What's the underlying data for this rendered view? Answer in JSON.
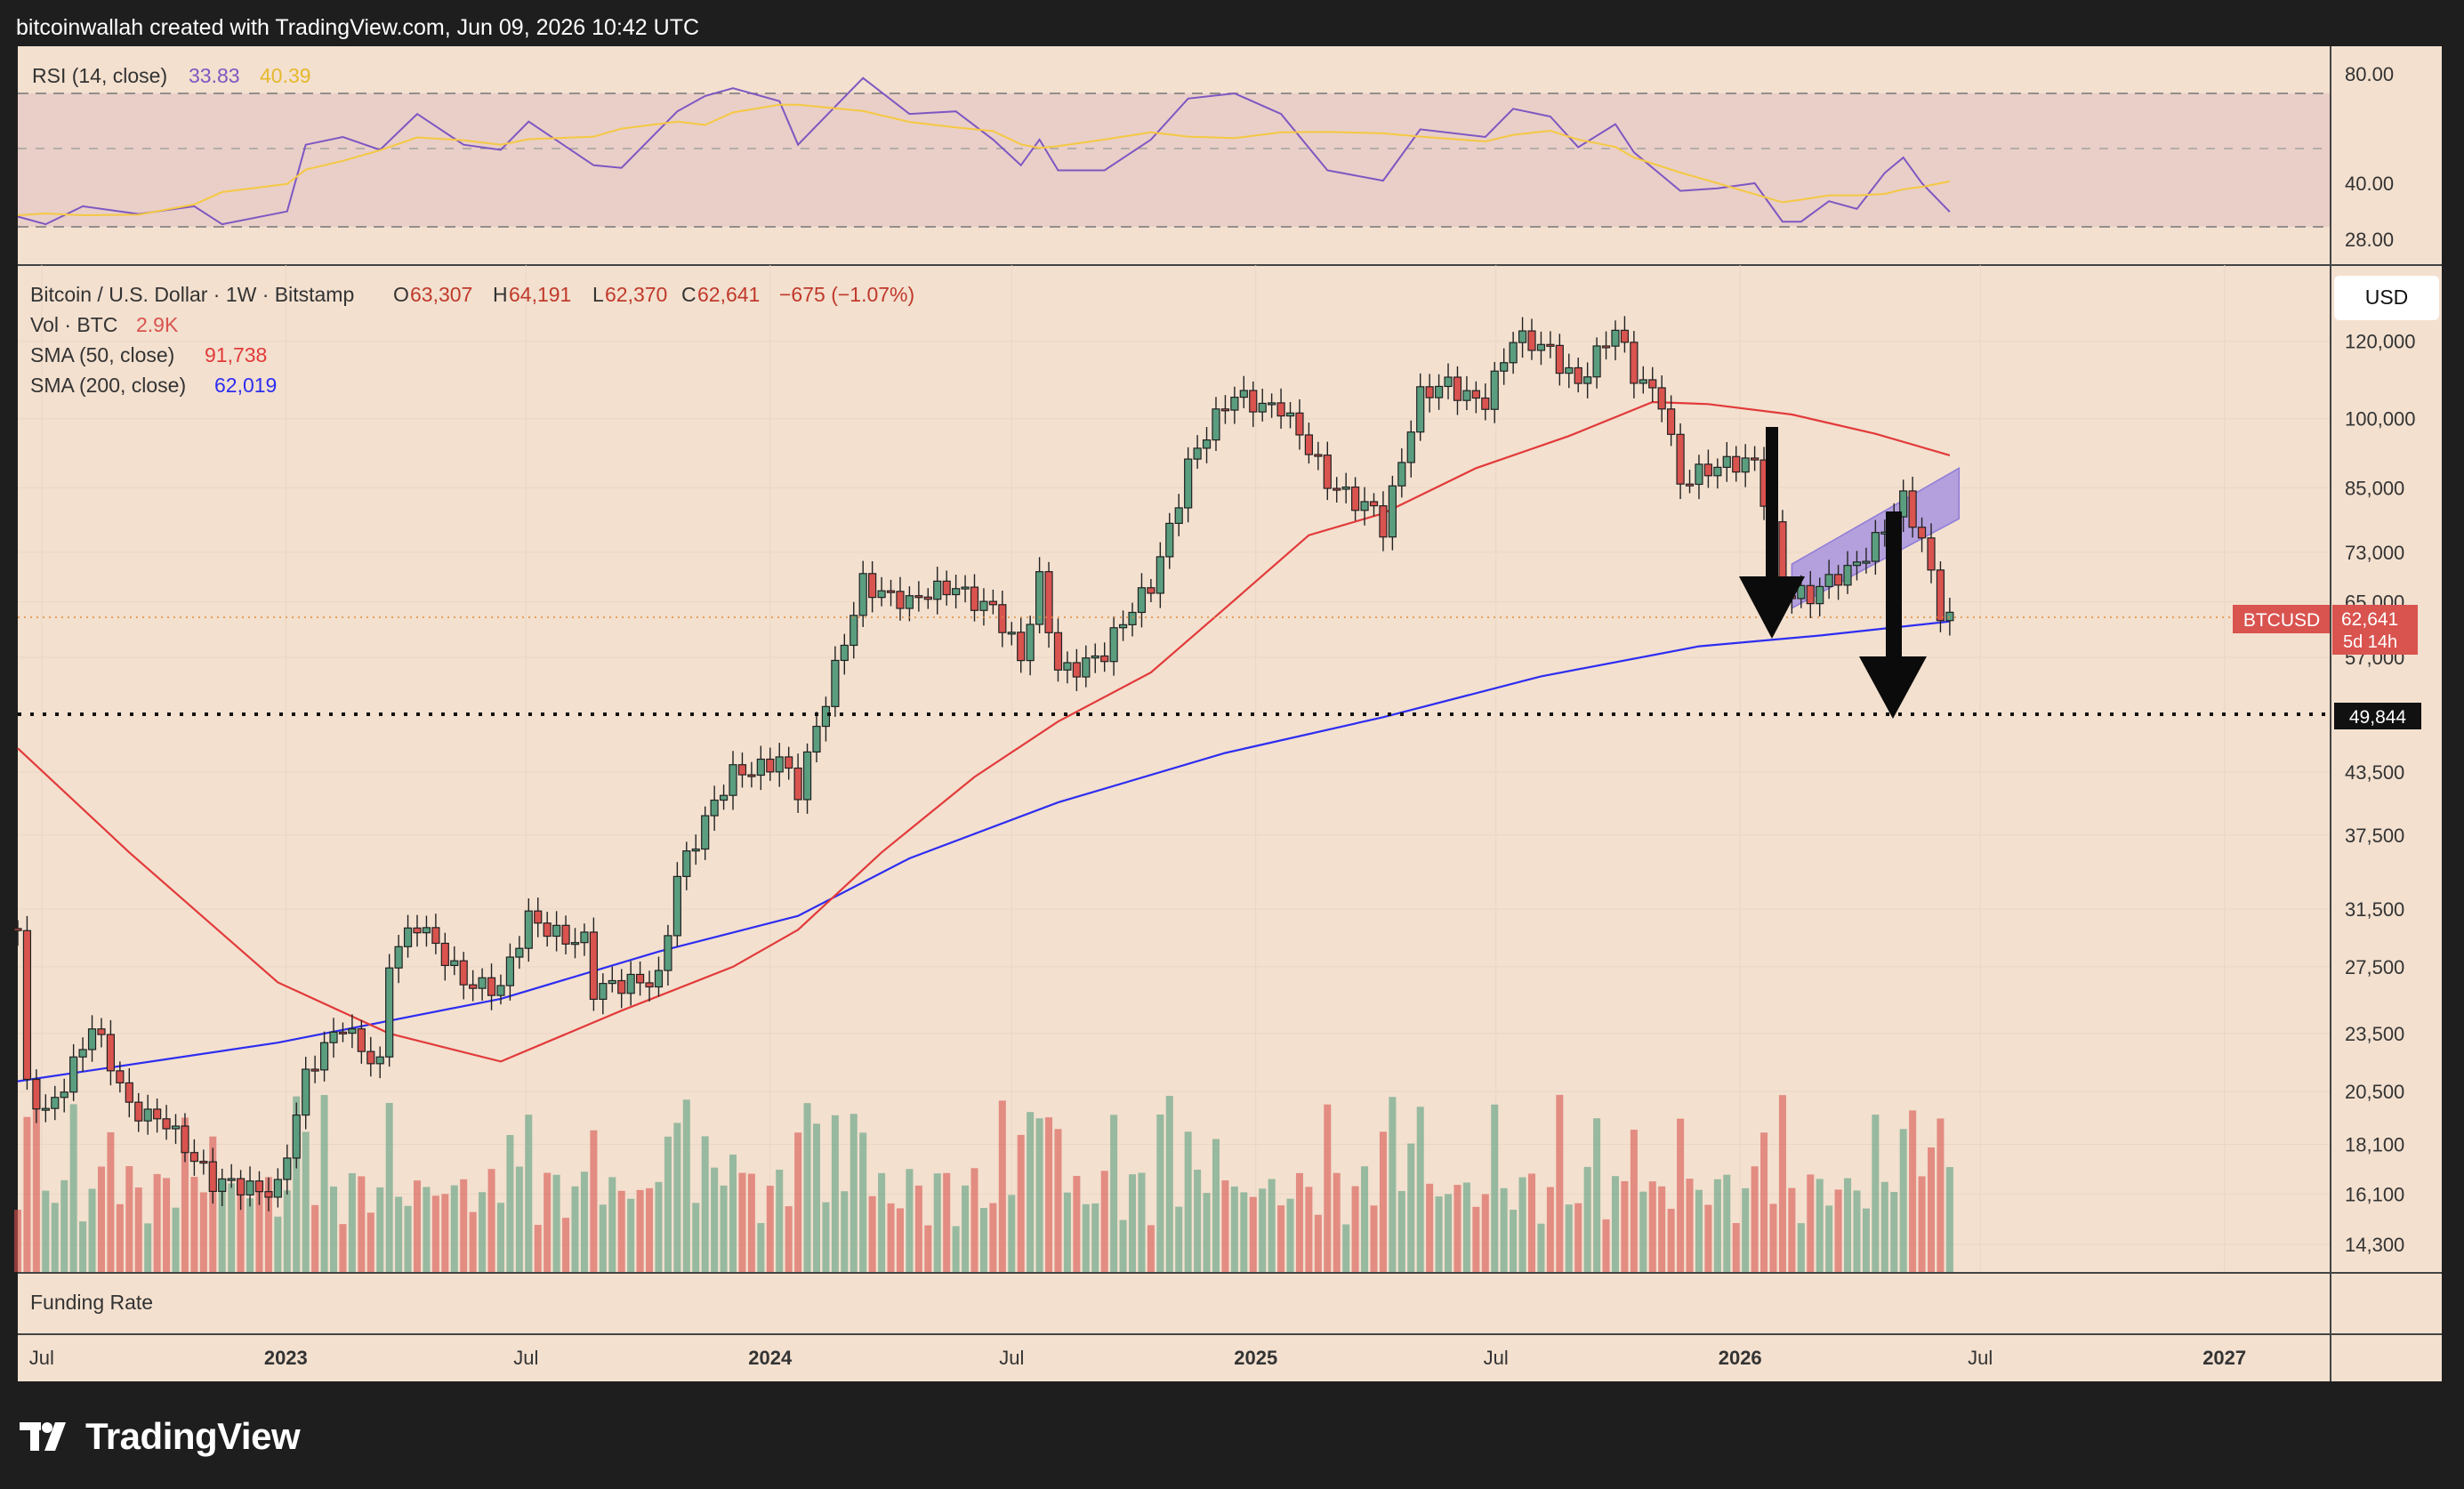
{
  "header": {
    "credit": "bitcoinwallah created with TradingView.com, Jun 09, 2026 10:42 UTC"
  },
  "rsi": {
    "label": "RSI (14, close)",
    "value": "33.83",
    "ma_value": "40.39",
    "ticks": [
      "80.00",
      "40.00",
      "28.00"
    ],
    "colors": {
      "rsi": "#7e57c2",
      "ma": "#f5c842"
    }
  },
  "legend": {
    "symbol": "Bitcoin / U.S. Dollar · 1W · Bitstamp",
    "o_label": "O",
    "o": "63,307",
    "h_label": "H",
    "h": "64,191",
    "l_label": "L",
    "l": "62,370",
    "c_label": "C",
    "c": "62,641",
    "change": "−675 (−1.07%)",
    "vol_label": "Vol · BTC",
    "vol": "2.9K",
    "sma50_label": "SMA (50, close)",
    "sma50": "91,738",
    "sma200_label": "SMA (200, close)",
    "sma200": "62,019"
  },
  "currency_button": "USD",
  "price_tag": {
    "symbol": "BTCUSD",
    "price": "62,641",
    "countdown": "5d 14h"
  },
  "level_label": "49,844",
  "funding_label": "Funding Rate",
  "colors": {
    "up": "#5a9e7f",
    "down": "#d9534f",
    "sma50": "#e23a3a",
    "sma200": "#2d2df0",
    "background": "#f3e0cf",
    "channel": "#9a86e0"
  },
  "chart_data": {
    "type": "candlestick",
    "title": "Bitcoin / U.S. Dollar · 1W · Bitstamp",
    "y_scale": "log",
    "y_ticks": [
      120000,
      100000,
      85000,
      73000,
      65000,
      57000,
      43500,
      37500,
      31500,
      27500,
      23500,
      20500,
      18100,
      16100,
      14300
    ],
    "y_tick_labels": [
      "120,000",
      "100,000",
      "85,000",
      "73,000",
      "65,000",
      "57,000",
      "43,500",
      "37,500",
      "31,500",
      "27,500",
      "23,500",
      "20,500",
      "18,100",
      "16,100",
      "14,300"
    ],
    "x_ticks": [
      "Jul",
      "2023",
      "Jul",
      "2024",
      "Jul",
      "2025",
      "Jul",
      "2026",
      "Jul",
      "2027"
    ],
    "x_tick_dates": [
      "2022-07-01",
      "2023-01-01",
      "2023-07-01",
      "2024-01-01",
      "2024-07-01",
      "2025-01-01",
      "2025-07-01",
      "2026-01-01",
      "2026-07-01",
      "2027-01-01"
    ],
    "x_range": [
      "2022-06-13",
      "2027-03-22"
    ],
    "price_path": [
      [
        "2022-06-13",
        29500
      ],
      [
        "2022-06-20",
        20500
      ],
      [
        "2022-07-04",
        19500
      ],
      [
        "2022-08-08",
        24000
      ],
      [
        "2022-09-05",
        19500
      ],
      [
        "2022-10-03",
        19400
      ],
      [
        "2022-11-07",
        16300
      ],
      [
        "2022-12-26",
        16500
      ],
      [
        "2023-01-16",
        21000
      ],
      [
        "2023-02-13",
        24000
      ],
      [
        "2023-03-13",
        22000
      ],
      [
        "2023-03-20",
        28000
      ],
      [
        "2023-04-10",
        30000
      ],
      [
        "2023-05-15",
        27000
      ],
      [
        "2023-06-12",
        26000
      ],
      [
        "2023-07-03",
        30500
      ],
      [
        "2023-08-14",
        29500
      ],
      [
        "2023-08-21",
        26000
      ],
      [
        "2023-09-11",
        26000
      ],
      [
        "2023-10-09",
        27000
      ],
      [
        "2023-10-23",
        34500
      ],
      [
        "2023-11-06",
        37000
      ],
      [
        "2023-12-04",
        43000
      ],
      [
        "2024-01-08",
        45500
      ],
      [
        "2024-01-22",
        41500
      ],
      [
        "2024-02-12",
        51000
      ],
      [
        "2024-03-11",
        69000
      ],
      [
        "2024-04-15",
        64000
      ],
      [
        "2024-05-20",
        68000
      ],
      [
        "2024-06-17",
        64000
      ],
      [
        "2024-07-08",
        56000
      ],
      [
        "2024-07-22",
        68000
      ],
      [
        "2024-08-05",
        56000
      ],
      [
        "2024-09-09",
        57000
      ],
      [
        "2024-10-14",
        68000
      ],
      [
        "2024-11-11",
        90000
      ],
      [
        "2024-12-16",
        105000
      ],
      [
        "2025-01-20",
        104000
      ],
      [
        "2025-02-24",
        85000
      ],
      [
        "2025-03-31",
        82000
      ],
      [
        "2025-04-07",
        78000
      ],
      [
        "2025-05-05",
        104000
      ],
      [
        "2025-05-26",
        109000
      ],
      [
        "2025-06-23",
        105000
      ],
      [
        "2025-07-14",
        119000
      ],
      [
        "2025-08-11",
        118000
      ],
      [
        "2025-09-01",
        110000
      ],
      [
        "2025-09-29",
        122000
      ],
      [
        "2025-10-13",
        110000
      ],
      [
        "2025-11-03",
        106000
      ],
      [
        "2025-11-17",
        87000
      ],
      [
        "2025-12-15",
        88000
      ],
      [
        "2026-01-12",
        91000
      ],
      [
        "2026-01-26",
        78000
      ],
      [
        "2026-02-02",
        67000
      ],
      [
        "2026-02-23",
        65000
      ],
      [
        "2026-03-23",
        70000
      ],
      [
        "2026-04-20",
        78000
      ],
      [
        "2026-05-04",
        82000
      ],
      [
        "2026-05-18",
        74000
      ],
      [
        "2026-06-01",
        63307
      ],
      [
        "2026-06-08",
        62641
      ]
    ],
    "sma50": [
      [
        "2022-06-13",
        46000
      ],
      [
        "2022-09-05",
        36000
      ],
      [
        "2022-12-26",
        26500
      ],
      [
        "2023-03-20",
        23500
      ],
      [
        "2023-06-12",
        22000
      ],
      [
        "2023-09-11",
        24800
      ],
      [
        "2023-12-04",
        27500
      ],
      [
        "2024-01-22",
        30000
      ],
      [
        "2024-03-25",
        36000
      ],
      [
        "2024-06-03",
        43000
      ],
      [
        "2024-08-05",
        49000
      ],
      [
        "2024-10-14",
        55000
      ],
      [
        "2024-12-09",
        64000
      ],
      [
        "2025-02-10",
        76000
      ],
      [
        "2025-04-07",
        80000
      ],
      [
        "2025-06-16",
        89000
      ],
      [
        "2025-08-25",
        96000
      ],
      [
        "2025-10-27",
        104000
      ],
      [
        "2025-12-08",
        103500
      ],
      [
        "2026-02-09",
        101000
      ],
      [
        "2026-04-13",
        96500
      ],
      [
        "2026-06-08",
        91738
      ]
    ],
    "sma200": [
      [
        "2022-06-13",
        21000
      ],
      [
        "2022-12-26",
        23000
      ],
      [
        "2023-06-12",
        25500
      ],
      [
        "2023-10-09",
        28500
      ],
      [
        "2024-01-22",
        31000
      ],
      [
        "2024-04-15",
        35500
      ],
      [
        "2024-08-05",
        40500
      ],
      [
        "2024-12-09",
        45500
      ],
      [
        "2025-04-07",
        49500
      ],
      [
        "2025-08-04",
        54500
      ],
      [
        "2025-12-01",
        58500
      ],
      [
        "2026-03-02",
        60000
      ],
      [
        "2026-06-08",
        62019
      ]
    ],
    "rsi": [
      [
        "2022-06-13",
        32
      ],
      [
        "2022-07-04",
        29
      ],
      [
        "2022-08-01",
        36
      ],
      [
        "2022-09-12",
        33
      ],
      [
        "2022-10-24",
        36
      ],
      [
        "2022-11-14",
        29
      ],
      [
        "2023-01-02",
        34
      ],
      [
        "2023-01-16",
        60
      ],
      [
        "2023-02-13",
        63
      ],
      [
        "2023-03-13",
        58
      ],
      [
        "2023-04-10",
        72
      ],
      [
        "2023-05-15",
        60
      ],
      [
        "2023-06-12",
        58
      ],
      [
        "2023-07-03",
        69
      ],
      [
        "2023-08-21",
        52
      ],
      [
        "2023-09-11",
        51
      ],
      [
        "2023-10-23",
        73
      ],
      [
        "2023-11-13",
        79
      ],
      [
        "2023-12-04",
        82
      ],
      [
        "2024-01-08",
        77
      ],
      [
        "2024-01-22",
        60
      ],
      [
        "2024-03-11",
        86
      ],
      [
        "2024-04-15",
        72
      ],
      [
        "2024-05-20",
        73
      ],
      [
        "2024-06-17",
        62
      ],
      [
        "2024-07-08",
        52
      ],
      [
        "2024-07-22",
        62
      ],
      [
        "2024-08-05",
        50
      ],
      [
        "2024-09-09",
        50
      ],
      [
        "2024-10-14",
        62
      ],
      [
        "2024-11-11",
        78
      ],
      [
        "2024-12-16",
        80
      ],
      [
        "2025-01-20",
        72
      ],
      [
        "2025-02-24",
        50
      ],
      [
        "2025-04-07",
        46
      ],
      [
        "2025-05-05",
        66
      ],
      [
        "2025-06-23",
        63
      ],
      [
        "2025-07-14",
        74
      ],
      [
        "2025-08-11",
        71
      ],
      [
        "2025-09-01",
        59
      ],
      [
        "2025-09-29",
        68
      ],
      [
        "2025-10-13",
        57
      ],
      [
        "2025-11-17",
        42
      ],
      [
        "2025-12-15",
        43
      ],
      [
        "2026-01-12",
        45
      ],
      [
        "2026-02-02",
        30
      ],
      [
        "2026-02-16",
        30
      ],
      [
        "2026-03-09",
        38
      ],
      [
        "2026-03-30",
        35
      ],
      [
        "2026-04-20",
        49
      ],
      [
        "2026-05-04",
        55
      ],
      [
        "2026-05-18",
        45
      ],
      [
        "2026-06-08",
        33.83
      ]
    ]
  }
}
